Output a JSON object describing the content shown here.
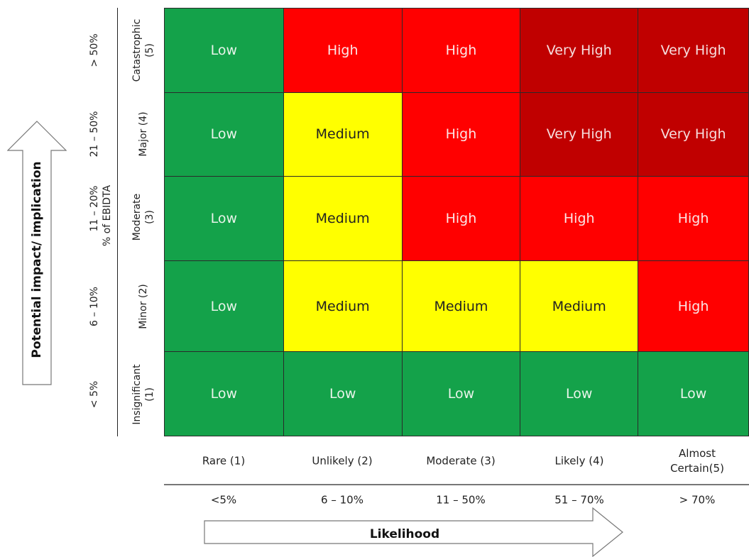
{
  "matrix": {
    "rows": [
      {
        "impact": "Catastrophic (5)",
        "impact_lines": [
          "Catastrophic",
          "(5)"
        ],
        "range": "> 50%",
        "cells": [
          {
            "label": "Low",
            "level": "low"
          },
          {
            "label": "High",
            "level": "high"
          },
          {
            "label": "High",
            "level": "high"
          },
          {
            "label": "Very High",
            "level": "veryhigh"
          },
          {
            "label": "Very High",
            "level": "veryhigh"
          }
        ]
      },
      {
        "impact": "Major (4)",
        "impact_lines": [
          "Major (4)"
        ],
        "range": "21 – 50%",
        "cells": [
          {
            "label": "Low",
            "level": "low"
          },
          {
            "label": "Medium",
            "level": "medium"
          },
          {
            "label": "High",
            "level": "high"
          },
          {
            "label": "Very High",
            "level": "veryhigh"
          },
          {
            "label": "Very High",
            "level": "veryhigh"
          }
        ]
      },
      {
        "impact": "Moderate (3)",
        "impact_lines": [
          "Moderate",
          "(3)"
        ],
        "range": "11 – 20%",
        "cells": [
          {
            "label": "Low",
            "level": "low"
          },
          {
            "label": "Medium",
            "level": "medium"
          },
          {
            "label": "High",
            "level": "high"
          },
          {
            "label": "High",
            "level": "high"
          },
          {
            "label": "High",
            "level": "high"
          }
        ]
      },
      {
        "impact": "Minor (2)",
        "impact_lines": [
          "Minor (2)"
        ],
        "range": "6 – 10%",
        "cells": [
          {
            "label": "Low",
            "level": "low"
          },
          {
            "label": "Medium",
            "level": "medium"
          },
          {
            "label": "Medium",
            "level": "medium"
          },
          {
            "label": "Medium",
            "level": "medium"
          },
          {
            "label": "High",
            "level": "high"
          }
        ]
      },
      {
        "impact": "Insignificant (1)",
        "impact_lines": [
          "Insignificant",
          "(1)"
        ],
        "range": "< 5%",
        "cells": [
          {
            "label": "Low",
            "level": "low"
          },
          {
            "label": "Low",
            "level": "low"
          },
          {
            "label": "Low",
            "level": "low"
          },
          {
            "label": "Low",
            "level": "low"
          },
          {
            "label": "Low",
            "level": "low"
          }
        ]
      }
    ],
    "impact_metric": "% of EBIDTA"
  },
  "likelihood": {
    "columns": [
      {
        "label": "Rare (1)",
        "label_lines": [
          "Rare (1)"
        ],
        "range": "<5%"
      },
      {
        "label": "Unlikely (2)",
        "label_lines": [
          "Unlikely (2)"
        ],
        "range": "6 – 10%"
      },
      {
        "label": "Moderate (3)",
        "label_lines": [
          "Moderate (3)"
        ],
        "range": "11 – 50%"
      },
      {
        "label": "Likely (4)",
        "label_lines": [
          "Likely (4)"
        ],
        "range": "51 – 70%"
      },
      {
        "label": "Almost Certain(5)",
        "label_lines": [
          "Almost",
          "Certain(5)"
        ],
        "range": "> 70%"
      }
    ]
  },
  "axes": {
    "impact_title": "Potential impact/ implication",
    "likelihood_title": "Likelihood"
  },
  "colors": {
    "low": "#14a24a",
    "medium": "#ffff00",
    "high": "#ff0000",
    "veryhigh": "#c00000"
  }
}
